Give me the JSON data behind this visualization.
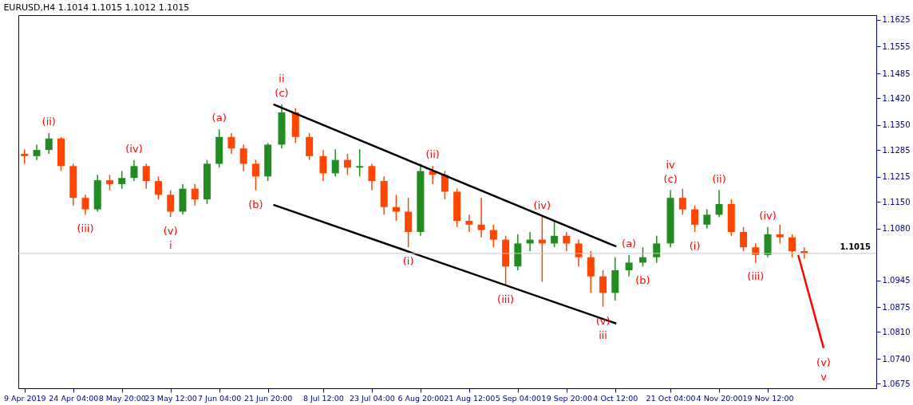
{
  "chart_data": {
    "type": "candlestick",
    "title": "EURUSD,H4  1.1014 1.1015 1.1012 1.1015",
    "x": [
      "2019-04-09T12:00",
      "2019-04-13T04:00",
      "2019-04-16T20:00",
      "2019-04-20T12:00",
      "2019-04-24T04:00",
      "2019-04-27T20:00",
      "2019-05-01T12:00",
      "2019-05-05T04:00",
      "2019-05-08T20:00",
      "2019-05-12T12:00",
      "2019-05-16T04:00",
      "2019-05-19T20:00",
      "2019-05-23T12:00",
      "2019-05-27T04:00",
      "2019-05-30T20:00",
      "2019-06-03T12:00",
      "2019-06-07T04:00",
      "2019-06-10T20:00",
      "2019-06-14T12:00",
      "2019-06-18T04:00",
      "2019-06-21T20:00",
      "2019-06-26T00:00",
      "2019-06-30T04:00",
      "2019-07-04T08:00",
      "2019-07-08T12:00",
      "2019-07-12T04:00",
      "2019-07-15T20:00",
      "2019-07-19T12:00",
      "2019-07-23T04:00",
      "2019-07-26T20:00",
      "2019-07-30T12:00",
      "2019-08-03T04:00",
      "2019-08-06T20:00",
      "2019-08-10T12:00",
      "2019-08-14T04:00",
      "2019-08-17T20:00",
      "2019-08-21T12:00",
      "2019-08-25T04:00",
      "2019-08-28T20:00",
      "2019-09-01T12:00",
      "2019-09-05T04:00",
      "2019-09-08T20:00",
      "2019-09-12T12:00",
      "2019-09-16T04:00",
      "2019-09-19T20:00",
      "2019-09-23T12:00",
      "2019-09-27T04:00",
      "2019-09-30T20:00",
      "2019-10-04T12:00",
      "2019-10-08T16:00",
      "2019-10-12T20:00",
      "2019-10-17T00:00",
      "2019-10-21T04:00",
      "2019-10-24T20:00",
      "2019-10-28T12:00",
      "2019-11-01T04:00",
      "2019-11-04T20:00",
      "2019-11-08T12:00",
      "2019-11-12T04:00",
      "2019-11-15T20:00",
      "2019-11-19T12:00",
      "2019-11-23T04:00",
      "2019-11-26T20:00",
      "2019-11-30T12:00"
    ],
    "ohlc": [
      [
        1.1275,
        1.1287,
        1.1249,
        1.1269
      ],
      [
        1.1269,
        1.1299,
        1.1259,
        1.1285
      ],
      [
        1.1285,
        1.1329,
        1.1275,
        1.1315
      ],
      [
        1.1315,
        1.1319,
        1.123,
        1.1243
      ],
      [
        1.1243,
        1.1249,
        1.114,
        1.116
      ],
      [
        1.116,
        1.1168,
        1.1116,
        1.113
      ],
      [
        1.113,
        1.122,
        1.1124,
        1.1206
      ],
      [
        1.1206,
        1.122,
        1.118,
        1.1196
      ],
      [
        1.1196,
        1.123,
        1.1184,
        1.1212
      ],
      [
        1.1212,
        1.1259,
        1.1204,
        1.1243
      ],
      [
        1.1243,
        1.1249,
        1.1184,
        1.1204
      ],
      [
        1.1204,
        1.1216,
        1.1156,
        1.1168
      ],
      [
        1.1168,
        1.118,
        1.111,
        1.1124
      ],
      [
        1.1124,
        1.1196,
        1.1116,
        1.1184
      ],
      [
        1.1184,
        1.1196,
        1.114,
        1.1156
      ],
      [
        1.1156,
        1.1259,
        1.1144,
        1.1249
      ],
      [
        1.1249,
        1.1339,
        1.1239,
        1.1319
      ],
      [
        1.1319,
        1.1329,
        1.1275,
        1.1289
      ],
      [
        1.1289,
        1.1299,
        1.123,
        1.1249
      ],
      [
        1.1249,
        1.1259,
        1.118,
        1.1216
      ],
      [
        1.1216,
        1.1303,
        1.1204,
        1.1299
      ],
      [
        1.1299,
        1.1404,
        1.1289,
        1.1383
      ],
      [
        1.1383,
        1.1394,
        1.1303,
        1.1319
      ],
      [
        1.1319,
        1.1329,
        1.1259,
        1.1269
      ],
      [
        1.1269,
        1.1285,
        1.1204,
        1.1224
      ],
      [
        1.1224,
        1.1287,
        1.1216,
        1.1259
      ],
      [
        1.1259,
        1.1275,
        1.122,
        1.1239
      ],
      [
        1.1239,
        1.1287,
        1.1216,
        1.1243
      ],
      [
        1.1243,
        1.1249,
        1.118,
        1.1204
      ],
      [
        1.1204,
        1.1216,
        1.1116,
        1.1136
      ],
      [
        1.1136,
        1.1168,
        1.11,
        1.1124
      ],
      [
        1.1124,
        1.116,
        1.1031,
        1.1071
      ],
      [
        1.1071,
        1.1249,
        1.1061,
        1.123
      ],
      [
        1.123,
        1.1243,
        1.1196,
        1.122
      ],
      [
        1.122,
        1.123,
        1.1156,
        1.1176
      ],
      [
        1.1176,
        1.1184,
        1.1084,
        1.11
      ],
      [
        1.11,
        1.1116,
        1.1071,
        1.109
      ],
      [
        1.109,
        1.116,
        1.1057,
        1.1076
      ],
      [
        1.1076,
        1.109,
        1.1031,
        1.1051
      ],
      [
        1.1051,
        1.1061,
        1.0931,
        1.0981
      ],
      [
        1.0981,
        1.1065,
        1.0971,
        1.1041
      ],
      [
        1.1041,
        1.1071,
        1.1021,
        1.1051
      ],
      [
        1.1051,
        1.111,
        1.0941,
        1.1041
      ],
      [
        1.1041,
        1.11,
        1.1031,
        1.1061
      ],
      [
        1.1061,
        1.1071,
        1.1021,
        1.1041
      ],
      [
        1.1041,
        1.1051,
        1.0981,
        1.1005
      ],
      [
        1.1005,
        1.1021,
        1.0912,
        1.0955
      ],
      [
        1.0955,
        1.0971,
        1.0876,
        1.0912
      ],
      [
        1.0912,
        1.1005,
        1.0892,
        1.0971
      ],
      [
        1.0971,
        1.1011,
        1.0955,
        1.0991
      ],
      [
        1.0991,
        1.1031,
        1.0981,
        1.1005
      ],
      [
        1.1005,
        1.1061,
        1.0991,
        1.1041
      ],
      [
        1.1041,
        1.118,
        1.1031,
        1.116
      ],
      [
        1.116,
        1.1184,
        1.1116,
        1.113
      ],
      [
        1.113,
        1.114,
        1.1071,
        1.109
      ],
      [
        1.109,
        1.113,
        1.108,
        1.1116
      ],
      [
        1.1116,
        1.118,
        1.111,
        1.1144
      ],
      [
        1.1144,
        1.1156,
        1.1061,
        1.1071
      ],
      [
        1.1071,
        1.1084,
        1.1021,
        1.1031
      ],
      [
        1.1031,
        1.1041,
        1.0991,
        1.1011
      ],
      [
        1.1011,
        1.1084,
        1.1005,
        1.1065
      ],
      [
        1.1065,
        1.109,
        1.1041,
        1.1057
      ],
      [
        1.1057,
        1.1065,
        1.1005,
        1.1021
      ],
      [
        1.1021,
        1.1031,
        1.1001,
        1.1015
      ]
    ],
    "colors": [
      "#ff4500",
      "#228b22",
      "#228b22",
      "#ff4500",
      "#ff4500",
      "#ff4500",
      "#228b22",
      "#ff4500",
      "#228b22",
      "#228b22",
      "#ff4500",
      "#ff4500",
      "#ff4500",
      "#228b22",
      "#ff4500",
      "#228b22",
      "#228b22",
      "#ff4500",
      "#ff4500",
      "#ff4500",
      "#228b22",
      "#228b22",
      "#ff4500",
      "#ff4500",
      "#ff4500",
      "#228b22",
      "#ff4500",
      "#228b22",
      "#ff4500",
      "#ff4500",
      "#ff4500",
      "#ff4500",
      "#228b22",
      "#ff4500",
      "#ff4500",
      "#ff4500",
      "#ff4500",
      "#ff4500",
      "#ff4500",
      "#ff4500",
      "#228b22",
      "#228b22",
      "#ff4500",
      "#228b22",
      "#ff4500",
      "#ff4500",
      "#ff4500",
      "#ff4500",
      "#228b22",
      "#228b22",
      "#228b22",
      "#228b22",
      "#228b22",
      "#ff4500",
      "#ff4500",
      "#228b22",
      "#228b22",
      "#ff4500",
      "#ff4500",
      "#ff4500",
      "#228b22",
      "#ff4500",
      "#ff4500",
      "#ff4500"
    ],
    "series": [
      {
        "type": "line",
        "color": "#000000",
        "x": [
          "2019-06-23T12:00",
          "2019-10-04T20:00"
        ],
        "values": [
          1.1404,
          1.1033
        ]
      },
      {
        "type": "line",
        "color": "#000000",
        "x": [
          "2019-06-23T12:00",
          "2019-10-04T20:00"
        ],
        "values": [
          1.1142,
          1.0832
        ]
      },
      {
        "type": "line",
        "color": "#ff0000",
        "x": [
          "2019-11-28T16:00",
          "2019-12-06T08:00"
        ],
        "values": [
          1.1011,
          1.0768
        ]
      }
    ],
    "xlim": [
      "2019-04-08T20:00",
      "2019-12-21T00:00"
    ],
    "xticks": [
      {
        "value": "2019-04-09T12:00",
        "label": "9 Apr 2019"
      },
      {
        "value": "2019-04-24T04:00",
        "label": "24 Apr 04:00"
      },
      {
        "value": "2019-05-08T20:00",
        "label": "8 May 20:00"
      },
      {
        "value": "2019-05-23T12:00",
        "label": "23 May 12:00"
      },
      {
        "value": "2019-06-07T04:00",
        "label": "7 Jun 04:00"
      },
      {
        "value": "2019-06-21T20:00",
        "label": "21 Jun 20:00"
      },
      {
        "value": "2019-07-08T12:00",
        "label": "8 Jul 12:00"
      },
      {
        "value": "2019-07-23T04:00",
        "label": "23 Jul 04:00"
      },
      {
        "value": "2019-08-06T20:00",
        "label": "6 Aug 20:00"
      },
      {
        "value": "2019-08-21T12:00",
        "label": "21 Aug 12:00"
      },
      {
        "value": "2019-09-05T04:00",
        "label": "5 Sep 04:00"
      },
      {
        "value": "2019-09-19T20:00",
        "label": "19 Sep 20:00"
      },
      {
        "value": "2019-10-04T12:00",
        "label": "4 Oct 12:00"
      },
      {
        "value": "2019-10-21T04:00",
        "label": "21 Oct 04:00"
      },
      {
        "value": "2019-11-04T20:00",
        "label": "4 Nov 20:00"
      },
      {
        "value": "2019-11-19T12:00",
        "label": "19 Nov 12:00"
      }
    ],
    "ylim": [
      1.0663,
      1.1637
    ],
    "yticks": [
      1.0675,
      {
        "value": 1.074,
        "label": "1.0740"
      },
      {
        "value": 1.081,
        "label": "1.0810"
      },
      1.0875,
      1.0945,
      {
        "value": 1.108,
        "label": "1.1080"
      },
      {
        "value": 1.115,
        "label": "1.1150"
      },
      1.1215,
      1.1285,
      {
        "value": 1.135,
        "label": "1.1350"
      },
      {
        "value": 1.142,
        "label": "1.1420"
      },
      1.1485,
      1.1555,
      1.1625
    ],
    "ref_lines": [
      {
        "axis": "y",
        "value": 1.1015,
        "label": "1.1015",
        "color": "#c8c8c8"
      }
    ],
    "annotations": [
      {
        "text": "(ii)",
        "x": "2019-04-16T20:00",
        "y": 1.1329
      },
      {
        "text": "(iii)",
        "x": "2019-04-27T20:00",
        "y": 1.1116
      },
      {
        "text": "(iv)",
        "x": "2019-05-12T12:00",
        "y": 1.1259
      },
      {
        "text": "(v)",
        "x": "2019-05-23T12:00",
        "y": 1.111
      },
      {
        "text": "i",
        "x": "2019-05-23T12:00",
        "y": 1.111
      },
      {
        "text": "(a)",
        "x": "2019-06-07T04:00",
        "y": 1.1339
      },
      {
        "text": "(b)",
        "x": "2019-06-18T04:00",
        "y": 1.118
      },
      {
        "text": "(c)",
        "x": "2019-06-26T00:00",
        "y": 1.1404
      },
      {
        "text": "ii",
        "x": "2019-06-26T00:00",
        "y": 1.1404
      },
      {
        "text": "(i)",
        "x": "2019-08-03T04:00",
        "y": 1.1031
      },
      {
        "text": "(ii)",
        "x": "2019-08-10T12:00",
        "y": 1.1243
      },
      {
        "text": "(iii)",
        "x": "2019-09-01T12:00",
        "y": 1.0931
      },
      {
        "text": "(iv)",
        "x": "2019-09-12T12:00",
        "y": 1.111
      },
      {
        "text": "(v)",
        "x": "2019-09-30T20:00",
        "y": 1.0876
      },
      {
        "text": "iii",
        "x": "2019-09-30T20:00",
        "y": 1.0876
      },
      {
        "text": "(a)",
        "x": "2019-10-08T16:00",
        "y": 1.1011
      },
      {
        "text": "(b)",
        "x": "2019-10-12T20:00",
        "y": 1.0981
      },
      {
        "text": "(c)",
        "x": "2019-10-21T04:00",
        "y": 1.118
      },
      {
        "text": "iv",
        "x": "2019-10-21T04:00",
        "y": 1.118
      },
      {
        "text": "(i)",
        "x": "2019-10-28T12:00",
        "y": 1.1071
      },
      {
        "text": "(ii)",
        "x": "2019-11-04T20:00",
        "y": 1.118
      },
      {
        "text": "(iii)",
        "x": "2019-11-15T20:00",
        "y": 1.0991
      },
      {
        "text": "(iv)",
        "x": "2019-11-19T12:00",
        "y": 1.1084
      },
      {
        "text": "(v)",
        "x": "2019-12-06T08:00",
        "y": 1.0768
      },
      {
        "text": "v",
        "x": "2019-12-06T08:00",
        "y": 1.0768
      }
    ],
    "grid": false
  }
}
